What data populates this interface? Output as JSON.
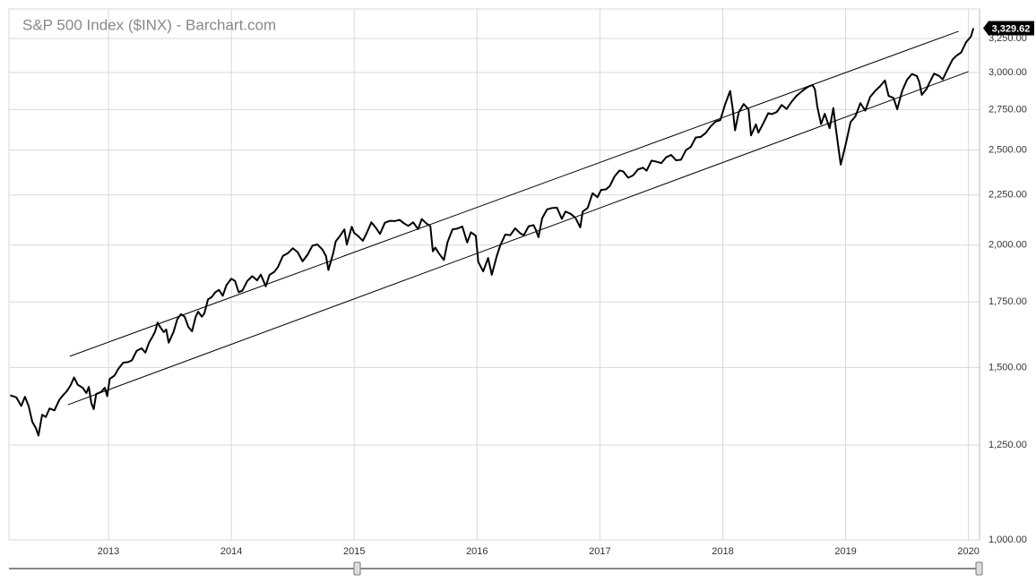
{
  "chart_data": {
    "type": "line",
    "title": "S&P 500 Index ($INX) - Barchart.com",
    "log_scale": true,
    "grid": true,
    "xlim": [
      2012.19,
      2020.09
    ],
    "xticks": [
      2013,
      2014,
      2015,
      2016,
      2017,
      2018,
      2019,
      2020
    ],
    "ylim": [
      1000,
      3484
    ],
    "yticks": [
      {
        "value": 1000,
        "label": "1,000.00"
      },
      {
        "value": 1250,
        "label": "1,250.00"
      },
      {
        "value": 1500,
        "label": "1,500.00"
      },
      {
        "value": 1750,
        "label": "1,750.00"
      },
      {
        "value": 2000,
        "label": "2,000.00"
      },
      {
        "value": 2250,
        "label": "2,250.00"
      },
      {
        "value": 2500,
        "label": "2,500.00"
      },
      {
        "value": 2750,
        "label": "2,750.00"
      },
      {
        "value": 3000,
        "label": "3,000.00"
      },
      {
        "value": 3250,
        "label": "3,250.00"
      }
    ],
    "current": {
      "value": 3329.62,
      "label": "3,329.62"
    },
    "series": [
      {
        "color": "#000000",
        "x": [
          2012.2,
          2012.25,
          2012.29,
          2012.32,
          2012.35,
          2012.38,
          2012.41,
          2012.43,
          2012.46,
          2012.49,
          2012.52,
          2012.56,
          2012.6,
          2012.63,
          2012.66,
          2012.69,
          2012.72,
          2012.75,
          2012.79,
          2012.82,
          2012.84,
          2012.86,
          2012.88,
          2012.9,
          2012.94,
          2012.97,
          2012.99,
          2013.01,
          2013.05,
          2013.08,
          2013.12,
          2013.16,
          2013.19,
          2013.23,
          2013.27,
          2013.3,
          2013.33,
          2013.36,
          2013.38,
          2013.4,
          2013.42,
          2013.45,
          2013.47,
          2013.49,
          2013.53,
          2013.56,
          2013.59,
          2013.62,
          2013.65,
          2013.68,
          2013.71,
          2013.73,
          2013.76,
          2013.78,
          2013.81,
          2013.84,
          2013.87,
          2013.9,
          2013.93,
          2013.96,
          2014.0,
          2014.03,
          2014.06,
          2014.09,
          2014.13,
          2014.17,
          2014.21,
          2014.24,
          2014.28,
          2014.31,
          2014.35,
          2014.38,
          2014.42,
          2014.46,
          2014.5,
          2014.54,
          2014.58,
          2014.62,
          2014.66,
          2014.7,
          2014.74,
          2014.77,
          2014.79,
          2014.83,
          2014.85,
          2014.88,
          2014.92,
          2014.94,
          2014.98,
          2015.0,
          2015.03,
          2015.07,
          2015.1,
          2015.14,
          2015.18,
          2015.21,
          2015.25,
          2015.29,
          2015.33,
          2015.37,
          2015.4,
          2015.44,
          2015.48,
          2015.52,
          2015.55,
          2015.59,
          2015.62,
          2015.64,
          2015.66,
          2015.69,
          2015.73,
          2015.76,
          2015.8,
          2015.84,
          2015.88,
          2015.92,
          2015.95,
          2015.99,
          2016.01,
          2016.05,
          2016.09,
          2016.12,
          2016.16,
          2016.19,
          2016.23,
          2016.27,
          2016.31,
          2016.35,
          2016.38,
          2016.42,
          2016.46,
          2016.48,
          2016.5,
          2016.53,
          2016.57,
          2016.61,
          2016.65,
          2016.69,
          2016.72,
          2016.76,
          2016.8,
          2016.84,
          2016.86,
          2016.9,
          2016.94,
          2016.98,
          2017.01,
          2017.05,
          2017.08,
          2017.12,
          2017.16,
          2017.19,
          2017.23,
          2017.27,
          2017.31,
          2017.35,
          2017.38,
          2017.42,
          2017.46,
          2017.5,
          2017.54,
          2017.58,
          2017.62,
          2017.66,
          2017.7,
          2017.74,
          2017.78,
          2017.82,
          2017.86,
          2017.9,
          2017.94,
          2017.98,
          2018.02,
          2018.06,
          2018.08,
          2018.1,
          2018.13,
          2018.17,
          2018.21,
          2018.23,
          2018.27,
          2018.29,
          2018.33,
          2018.37,
          2018.4,
          2018.44,
          2018.48,
          2018.52,
          2018.56,
          2018.6,
          2018.65,
          2018.69,
          2018.73,
          2018.75,
          2018.77,
          2018.8,
          2018.83,
          2018.87,
          2018.9,
          2018.92,
          2018.96,
          2019.0,
          2019.04,
          2019.08,
          2019.12,
          2019.16,
          2019.2,
          2019.24,
          2019.28,
          2019.32,
          2019.35,
          2019.39,
          2019.42,
          2019.46,
          2019.5,
          2019.54,
          2019.58,
          2019.6,
          2019.62,
          2019.66,
          2019.68,
          2019.72,
          2019.76,
          2019.79,
          2019.83,
          2019.87,
          2019.9,
          2019.94,
          2019.98,
          2020.02,
          2020.04
        ],
        "values": [
          1405,
          1398,
          1370,
          1400,
          1370,
          1320,
          1300,
          1278,
          1342,
          1335,
          1362,
          1356,
          1390,
          1405,
          1418,
          1437,
          1465,
          1440,
          1430,
          1412,
          1433,
          1380,
          1360,
          1409,
          1416,
          1430,
          1402,
          1460,
          1472,
          1495,
          1517,
          1519,
          1525,
          1560,
          1569,
          1553,
          1590,
          1614,
          1633,
          1667,
          1650,
          1630,
          1640,
          1590,
          1631,
          1680,
          1700,
          1690,
          1650,
          1633,
          1690,
          1710,
          1690,
          1703,
          1760,
          1770,
          1790,
          1800,
          1775,
          1820,
          1848,
          1838,
          1790,
          1797,
          1838,
          1859,
          1841,
          1866,
          1815,
          1864,
          1878,
          1900,
          1950,
          1962,
          1985,
          1967,
          1925,
          1955,
          1997,
          2003,
          1980,
          1950,
          1886,
          1964,
          2018,
          2040,
          2075,
          2002,
          2088,
          2058,
          2044,
          2020,
          2055,
          2110,
          2080,
          2053,
          2108,
          2117,
          2116,
          2122,
          2107,
          2092,
          2110,
          2076,
          2126,
          2103,
          2091,
          1971,
          1988,
          1961,
          1931,
          2014,
          2075,
          2079,
          2089,
          2012,
          2061,
          2044,
          1922,
          1880,
          1940,
          1865,
          1948,
          2000,
          2050,
          2047,
          2080,
          2057,
          2046,
          2090,
          2096,
          2071,
          2037,
          2130,
          2175,
          2182,
          2184,
          2127,
          2164,
          2153,
          2133,
          2085,
          2164,
          2182,
          2259,
          2238,
          2277,
          2280,
          2297,
          2351,
          2383,
          2378,
          2343,
          2356,
          2389,
          2399,
          2382,
          2439,
          2433,
          2425,
          2459,
          2472,
          2441,
          2444,
          2500,
          2519,
          2575,
          2579,
          2602,
          2642,
          2673,
          2683,
          2786,
          2873,
          2762,
          2619,
          2732,
          2786,
          2752,
          2588,
          2656,
          2605,
          2663,
          2727,
          2721,
          2735,
          2780,
          2754,
          2801,
          2840,
          2875,
          2900,
          2914,
          2885,
          2767,
          2658,
          2723,
          2632,
          2760,
          2633,
          2416,
          2532,
          2670,
          2707,
          2792,
          2743,
          2834,
          2873,
          2905,
          2945,
          2840,
          2826,
          2752,
          2873,
          2950,
          2990,
          2976,
          2932,
          2847,
          2888,
          2926,
          2992,
          2977,
          2952,
          3023,
          3093,
          3120,
          3145,
          3221,
          3265,
          3329.62
        ]
      }
    ],
    "trendlines": [
      {
        "color": "#000000",
        "x": [
          2012.686,
          2019.92
        ],
        "values": [
          1540,
          3306
        ]
      },
      {
        "color": "#000000",
        "x": [
          2012.67,
          2020.0
        ],
        "values": [
          1374,
          3007
        ]
      }
    ]
  }
}
